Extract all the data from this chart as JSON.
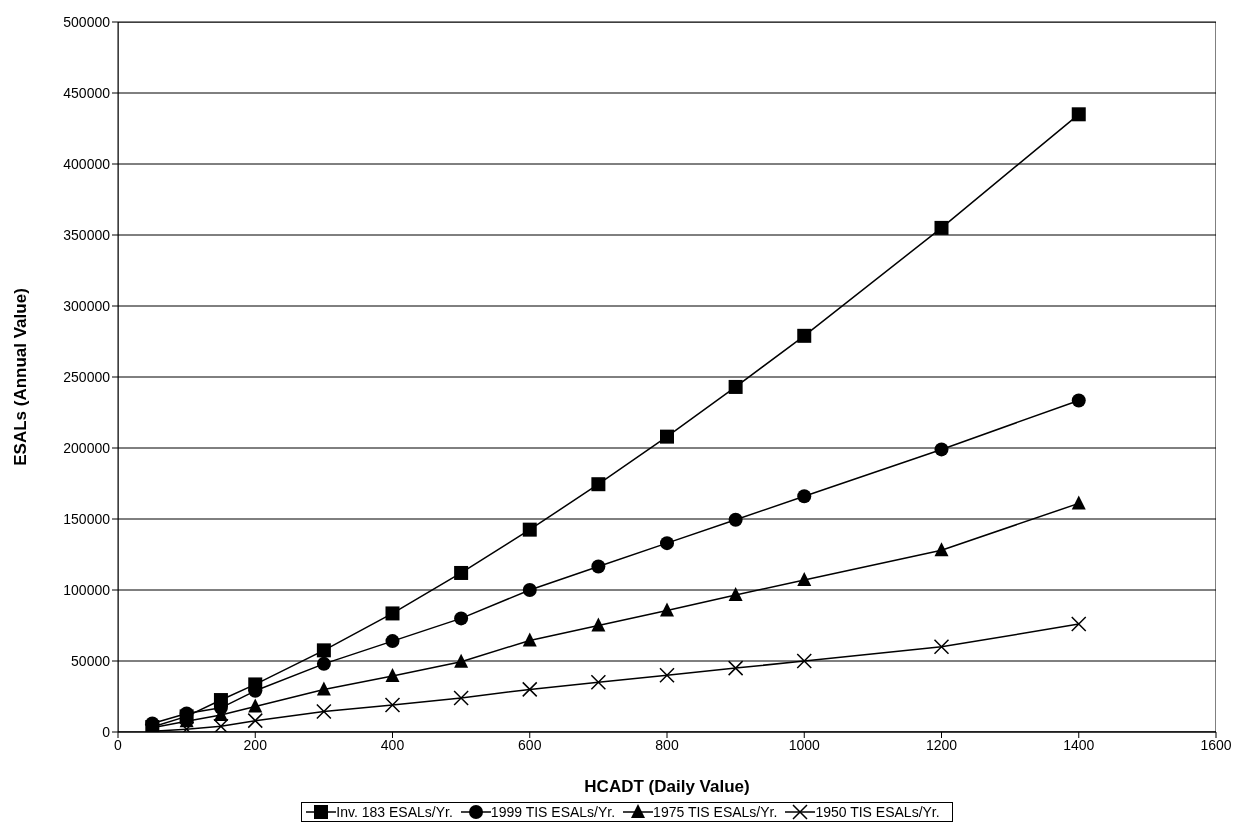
{
  "chart_data": {
    "type": "line",
    "xlabel": "HCADT (Daily Value)",
    "ylabel": "ESALs (Annual Value)",
    "x": [
      50,
      100,
      150,
      200,
      300,
      400,
      500,
      600,
      700,
      800,
      900,
      1000,
      1200,
      1400
    ],
    "series": [
      {
        "name": "Inv. 183 ESALs/Yr.",
        "color": "#000000",
        "marker": "square",
        "values": [
          3500,
          11000,
          22500,
          33500,
          57500,
          83500,
          112000,
          142500,
          174500,
          208000,
          243000,
          279000,
          355000,
          435000
        ]
      },
      {
        "name": "1999 TIS ESALs/Yr.",
        "color": "#000000",
        "marker": "circle",
        "values": [
          6000,
          13000,
          17000,
          29000,
          48000,
          64000,
          80000,
          100000,
          116500,
          133000,
          149500,
          166000,
          199000,
          233500
        ]
      },
      {
        "name": "1975 TIS ESALs/Yr.",
        "color": "#000000",
        "marker": "triangle",
        "values": [
          3000,
          7500,
          12000,
          18000,
          30000,
          39500,
          49500,
          64500,
          75000,
          85500,
          96500,
          107000,
          128000,
          161000
        ]
      },
      {
        "name": "1950 TIS ESALs/Yr.",
        "color": "#000000",
        "marker": "cross",
        "values": [
          500,
          2000,
          4000,
          8000,
          14500,
          19000,
          24000,
          30000,
          35000,
          40000,
          45000,
          50000,
          60000,
          76000
        ]
      }
    ],
    "xlim": [
      0,
      1600
    ],
    "xticks": [
      0,
      200,
      400,
      600,
      800,
      1000,
      1200,
      1400,
      1600
    ],
    "ylim": [
      0,
      500000
    ],
    "yticks": [
      0,
      50000,
      100000,
      150000,
      200000,
      250000,
      300000,
      350000,
      400000,
      450000,
      500000
    ],
    "grid": "y",
    "legend": "bottom",
    "line_style": "solid"
  }
}
